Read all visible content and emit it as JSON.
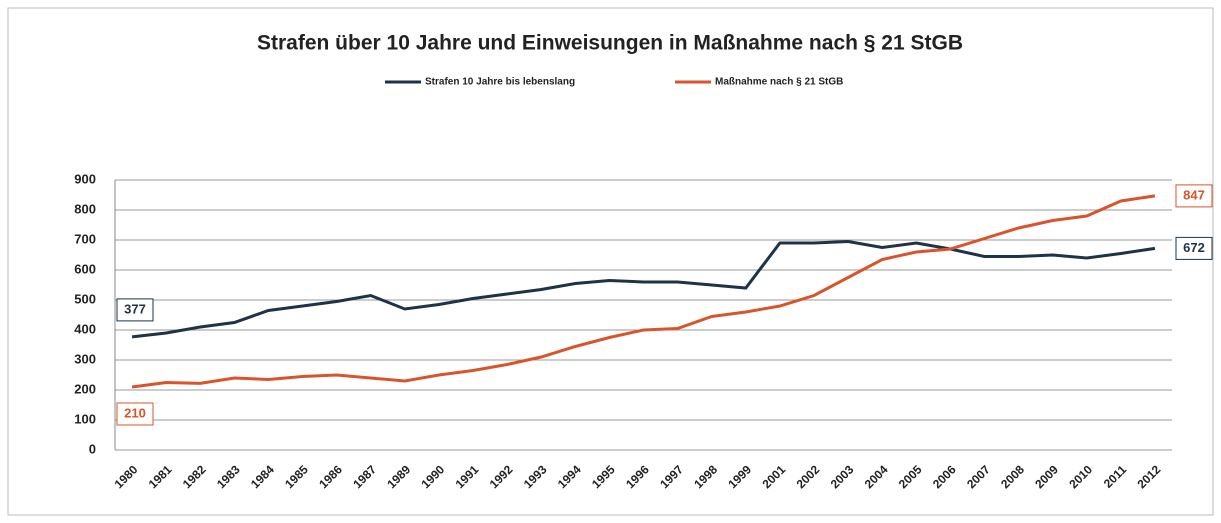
{
  "chart_data": {
    "type": "line",
    "title": "Strafen über 10 Jahre und Einweisungen in Maßnahme nach § 21 StGB",
    "categories": [
      "1980",
      "1981",
      "1982",
      "1983",
      "1984",
      "1985",
      "1986",
      "1987",
      "1989",
      "1990",
      "1991",
      "1992",
      "1993",
      "1994",
      "1995",
      "1996",
      "1997",
      "1998",
      "1999",
      "2001",
      "2002",
      "2003",
      "2004",
      "2005",
      "2006",
      "2007",
      "2008",
      "2009",
      "2010",
      "2011",
      "2012"
    ],
    "series": [
      {
        "name": "Strafen 10 Jahre bis lebenslang",
        "color": "#1f3347",
        "values": [
          377,
          390,
          410,
          425,
          465,
          480,
          495,
          515,
          470,
          485,
          505,
          520,
          535,
          555,
          565,
          560,
          560,
          550,
          540,
          690,
          690,
          695,
          675,
          690,
          670,
          645,
          645,
          650,
          640,
          655,
          672
        ]
      },
      {
        "name": "Maßnahme nach § 21 StGB",
        "color": "#d9542b",
        "values": [
          210,
          225,
          222,
          240,
          235,
          245,
          250,
          240,
          230,
          250,
          265,
          285,
          310,
          345,
          375,
          400,
          405,
          445,
          460,
          480,
          515,
          575,
          635,
          660,
          670,
          705,
          740,
          765,
          780,
          830,
          847
        ]
      }
    ],
    "ylim": [
      0,
      900
    ],
    "yticks": [
      0,
      100,
      200,
      300,
      400,
      500,
      600,
      700,
      800,
      900
    ],
    "grid": true,
    "legend": "top"
  }
}
